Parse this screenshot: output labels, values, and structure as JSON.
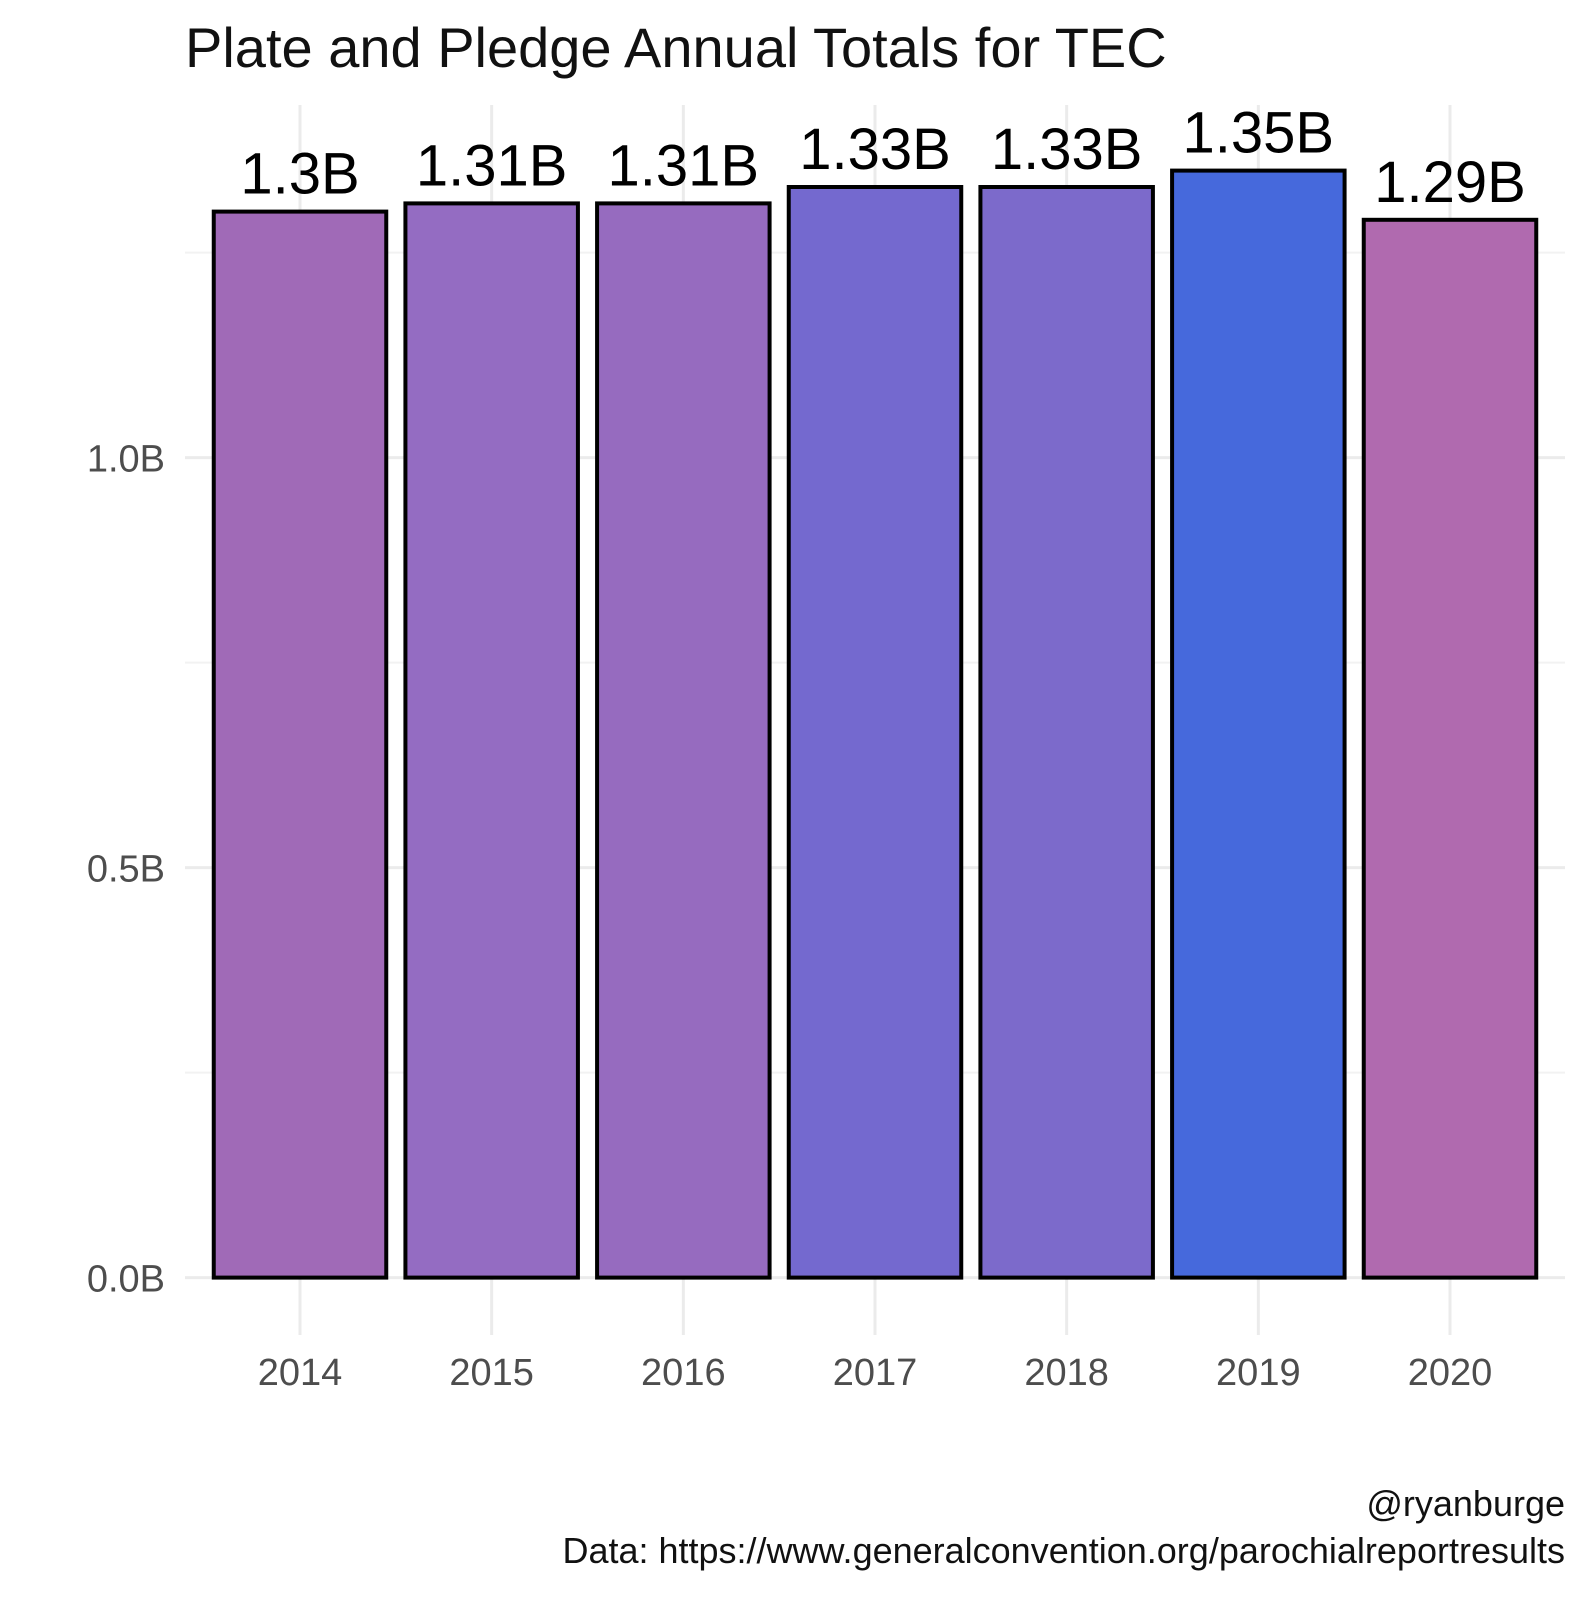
{
  "chart_data": {
    "type": "bar",
    "title": "Plate and Pledge Annual Totals for TEC",
    "xlabel": "",
    "ylabel": "",
    "categories": [
      "2014",
      "2015",
      "2016",
      "2017",
      "2018",
      "2019",
      "2020"
    ],
    "values": [
      1.3,
      1.31,
      1.31,
      1.33,
      1.33,
      1.35,
      1.29
    ],
    "value_labels": [
      "1.3B",
      "1.31B",
      "1.31B",
      "1.33B",
      "1.33B",
      "1.35B",
      "1.29B"
    ],
    "bar_colors": [
      "#a06ab7",
      "#946cc2",
      "#966bbf",
      "#7469cf",
      "#7c6acb",
      "#4669dc",
      "#b06aaf"
    ],
    "y_ticks": [
      0.0,
      0.5,
      1.0
    ],
    "y_tick_labels": [
      "0.0B",
      "0.5B",
      "1.0B"
    ],
    "ylim": [
      -0.07,
      1.43
    ],
    "grid": true,
    "caption_lines": [
      "@ryanburge",
      "Data: https://www.generalconvention.org/parochialreportresults"
    ]
  }
}
